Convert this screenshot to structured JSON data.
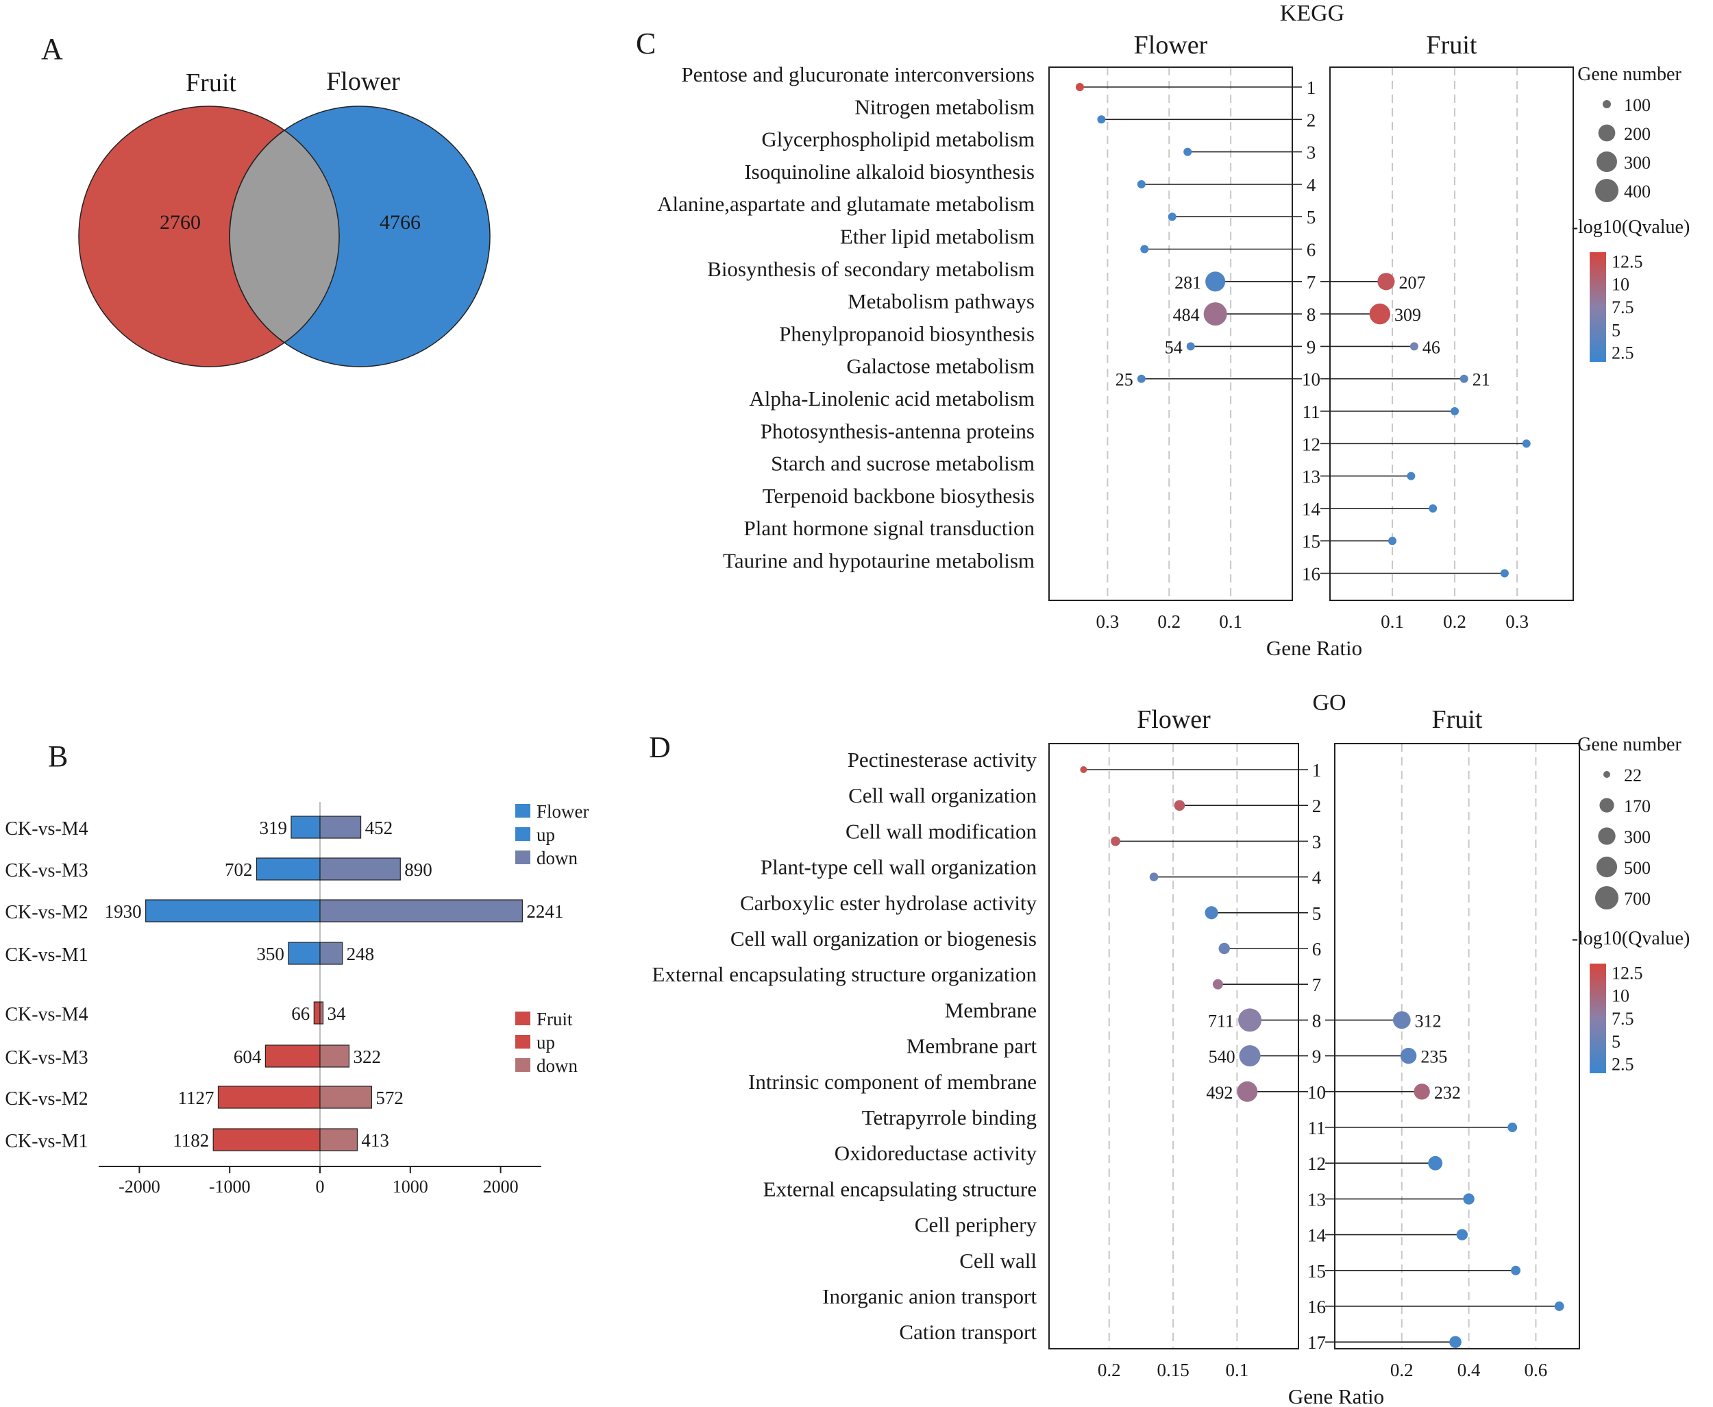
{
  "panels": {
    "a": {
      "letter": "A",
      "sets": [
        {
          "name": "Fruit",
          "count": "2760",
          "color": "#cd5049"
        },
        {
          "name": "Flower",
          "count": "4766",
          "color": "#3a86cf"
        }
      ],
      "overlap_color": "#9c9c9c"
    },
    "b": {
      "letter": "B"
    },
    "c": {
      "letter": "C",
      "title": "KEGG"
    },
    "d": {
      "letter": "D",
      "title": "GO"
    }
  },
  "colors": {
    "flower_up": "#3a86cf",
    "flower_down": "#7380ac",
    "fruit_up": "#cd4a46",
    "fruit_down": "#b47476",
    "q_low": "#3a86cf",
    "q_mid": "#8a80a8",
    "q_high": "#d6453e"
  },
  "chart_data": [
    {
      "id": "venn",
      "type": "venn",
      "sets": [
        "Fruit",
        "Flower"
      ],
      "only_counts": {
        "Fruit": 2760,
        "Flower": 4766
      }
    },
    {
      "id": "deg_bars",
      "type": "bar",
      "orientation": "horizontal",
      "xticks": [
        -2000,
        -1000,
        0,
        1000,
        2000
      ],
      "xlim": [
        -2450,
        2450
      ],
      "groups": [
        {
          "legend": [
            "Flower",
            "up",
            "down"
          ],
          "categories": [
            "CK-vs-M4",
            "CK-vs-M3",
            "CK-vs-M2",
            "CK-vs-M1"
          ],
          "up": [
            319,
            702,
            1930,
            350
          ],
          "down": [
            452,
            890,
            2241,
            248
          ]
        },
        {
          "legend": [
            "Fruit",
            "up",
            "down"
          ],
          "categories": [
            "CK-vs-M4",
            "CK-vs-M3",
            "CK-vs-M2",
            "CK-vs-M1"
          ],
          "up": [
            66,
            604,
            1127,
            1182
          ],
          "down": [
            34,
            322,
            572,
            413
          ]
        }
      ]
    },
    {
      "id": "kegg",
      "type": "scatter",
      "title": "KEGG",
      "xlabel": "Gene Ratio",
      "left_panel": "Flower",
      "right_panel": "Fruit",
      "left_ticks": [
        0.3,
        0.2,
        0.1
      ],
      "right_ticks": [
        0.1,
        0.2,
        0.3
      ],
      "left_xlim": [
        0.395,
        0.0
      ],
      "right_xlim": [
        0.0,
        0.39
      ],
      "terms": [
        "Pentose and glucuronate interconversions",
        "Nitrogen metabolism",
        "Glycerphospholipid metabolism",
        "Isoquinoline alkaloid biosynthesis",
        "Alanine,aspartate and glutamate metabolism",
        "Ether lipid metabolism",
        "Biosynthesis of secondary metabolism",
        "Metabolism pathways",
        "Phenylpropanoid biosynthesis",
        "Galactose metabolism",
        "Alpha-Linolenic acid metabolism",
        "Photosynthesis-antenna proteins",
        "Starch and sucrose metabolism",
        "Terpenoid backbone biosythesis",
        "Plant hormone signal transduction",
        "Taurine and hypotaurine metabolism"
      ],
      "indices": [
        "1",
        "2",
        "3",
        "4",
        "5",
        "6",
        "7",
        "8",
        "9",
        "10",
        "11",
        "12",
        "13",
        "14",
        "15",
        "16"
      ],
      "left": [
        {
          "term": 1,
          "ratio": 0.345,
          "genes": 15,
          "q": 13
        },
        {
          "term": 2,
          "ratio": 0.31,
          "genes": 10,
          "q": 2.5
        },
        {
          "term": 3,
          "ratio": 0.17,
          "genes": 20,
          "q": 2.5
        },
        {
          "term": 4,
          "ratio": 0.245,
          "genes": 12,
          "q": 2.5
        },
        {
          "term": 5,
          "ratio": 0.195,
          "genes": 18,
          "q": 2.5
        },
        {
          "term": 6,
          "ratio": 0.24,
          "genes": 12,
          "q": 2.5
        },
        {
          "term": 7,
          "ratio": 0.125,
          "genes": 281,
          "q": 3,
          "label": "281"
        },
        {
          "term": 8,
          "ratio": 0.125,
          "genes": 484,
          "q": 9,
          "label": "484"
        },
        {
          "term": 9,
          "ratio": 0.165,
          "genes": 54,
          "q": 3,
          "label": "54"
        },
        {
          "term": 10,
          "ratio": 0.245,
          "genes": 25,
          "q": 3,
          "label": "25"
        }
      ],
      "right": [
        {
          "term": 7,
          "ratio": 0.09,
          "genes": 207,
          "q": 12,
          "label": "207"
        },
        {
          "term": 8,
          "ratio": 0.08,
          "genes": 309,
          "q": 12.5,
          "label": "309"
        },
        {
          "term": 9,
          "ratio": 0.135,
          "genes": 46,
          "q": 6,
          "label": "46"
        },
        {
          "term": 10,
          "ratio": 0.215,
          "genes": 21,
          "q": 4,
          "label": "21"
        },
        {
          "term": 11,
          "ratio": 0.2,
          "genes": 15,
          "q": 2.5
        },
        {
          "term": 12,
          "ratio": 0.315,
          "genes": 12,
          "q": 2.5
        },
        {
          "term": 13,
          "ratio": 0.13,
          "genes": 15,
          "q": 2.5
        },
        {
          "term": 14,
          "ratio": 0.165,
          "genes": 15,
          "q": 2.5
        },
        {
          "term": 15,
          "ratio": 0.1,
          "genes": 15,
          "q": 2.5
        },
        {
          "term": 16,
          "ratio": 0.28,
          "genes": 12,
          "q": 2.5
        }
      ],
      "size_legend": {
        "title": "Gene number",
        "values": [
          100,
          200,
          300,
          400
        ],
        "labels": [
          "100",
          "200",
          "300",
          "400"
        ]
      },
      "color_legend": {
        "title": "-log10(Qvalue)",
        "ticks": [
          "12.5",
          "10",
          "7.5",
          "5",
          "2.5"
        ],
        "range": [
          1.5,
          13.5
        ]
      }
    },
    {
      "id": "go",
      "type": "scatter",
      "title": "GO",
      "xlabel": "Gene Ratio",
      "left_panel": "Flower",
      "right_panel": "Fruit",
      "left_ticks": [
        0.2,
        0.15,
        0.1
      ],
      "right_ticks": [
        0.2,
        0.4,
        0.6
      ],
      "left_xlim": [
        0.247,
        0.052
      ],
      "right_xlim": [
        0.0,
        0.73
      ],
      "terms": [
        "Pectinesterase activity",
        "Cell wall organization",
        "Cell wall modification",
        "Plant-type cell wall organization",
        "Carboxylic ester hydrolase activity",
        "Cell wall organization or biogenesis",
        "External encapsulating structure organization",
        "Membrane",
        "Membrane part",
        "Intrinsic component of membrane",
        "Tetrapyrrole binding",
        "Oxidoreductase activity",
        "External encapsulating structure",
        "Cell periphery",
        "Cell wall",
        "Inorganic anion transport",
        "Cation transport"
      ],
      "indices": [
        "1",
        "2",
        "3",
        "4",
        "5",
        "6",
        "7",
        "8",
        "9",
        "10",
        "11",
        "12",
        "13",
        "14",
        "15",
        "16",
        "17"
      ],
      "left": [
        {
          "term": 1,
          "ratio": 0.22,
          "genes": 22,
          "q": 12.5
        },
        {
          "term": 2,
          "ratio": 0.145,
          "genes": 60,
          "q": 11.5
        },
        {
          "term": 3,
          "ratio": 0.195,
          "genes": 40,
          "q": 11.5
        },
        {
          "term": 4,
          "ratio": 0.165,
          "genes": 30,
          "q": 5
        },
        {
          "term": 5,
          "ratio": 0.12,
          "genes": 120,
          "q": 3
        },
        {
          "term": 6,
          "ratio": 0.11,
          "genes": 70,
          "q": 5
        },
        {
          "term": 7,
          "ratio": 0.115,
          "genes": 50,
          "q": 9
        },
        {
          "term": 8,
          "ratio": 0.09,
          "genes": 711,
          "q": 7.5,
          "label": "711"
        },
        {
          "term": 9,
          "ratio": 0.09,
          "genes": 540,
          "q": 6,
          "label": "540"
        },
        {
          "term": 10,
          "ratio": 0.092,
          "genes": 492,
          "q": 9,
          "label": "492"
        }
      ],
      "right": [
        {
          "term": 8,
          "ratio": 0.2,
          "genes": 312,
          "q": 5,
          "label": "312"
        },
        {
          "term": 9,
          "ratio": 0.22,
          "genes": 235,
          "q": 4,
          "label": "235"
        },
        {
          "term": 10,
          "ratio": 0.26,
          "genes": 232,
          "q": 10,
          "label": "232"
        },
        {
          "term": 11,
          "ratio": 0.53,
          "genes": 40,
          "q": 2.5
        },
        {
          "term": 12,
          "ratio": 0.3,
          "genes": 160,
          "q": 2.5
        },
        {
          "term": 13,
          "ratio": 0.4,
          "genes": 70,
          "q": 2.5
        },
        {
          "term": 14,
          "ratio": 0.38,
          "genes": 70,
          "q": 2.5
        },
        {
          "term": 15,
          "ratio": 0.54,
          "genes": 40,
          "q": 2.5
        },
        {
          "term": 16,
          "ratio": 0.67,
          "genes": 40,
          "q": 2.5
        },
        {
          "term": 17,
          "ratio": 0.36,
          "genes": 90,
          "q": 2.5
        }
      ],
      "size_legend": {
        "title": "Gene number",
        "values": [
          22,
          170,
          300,
          500,
          700
        ],
        "labels": [
          "22",
          "170",
          "300",
          "500",
          "700"
        ]
      },
      "color_legend": {
        "title": "-log10(Qvalue)",
        "ticks": [
          "12.5",
          "10",
          "7.5",
          "5",
          "2.5"
        ],
        "range": [
          1.5,
          13.5
        ]
      }
    }
  ]
}
